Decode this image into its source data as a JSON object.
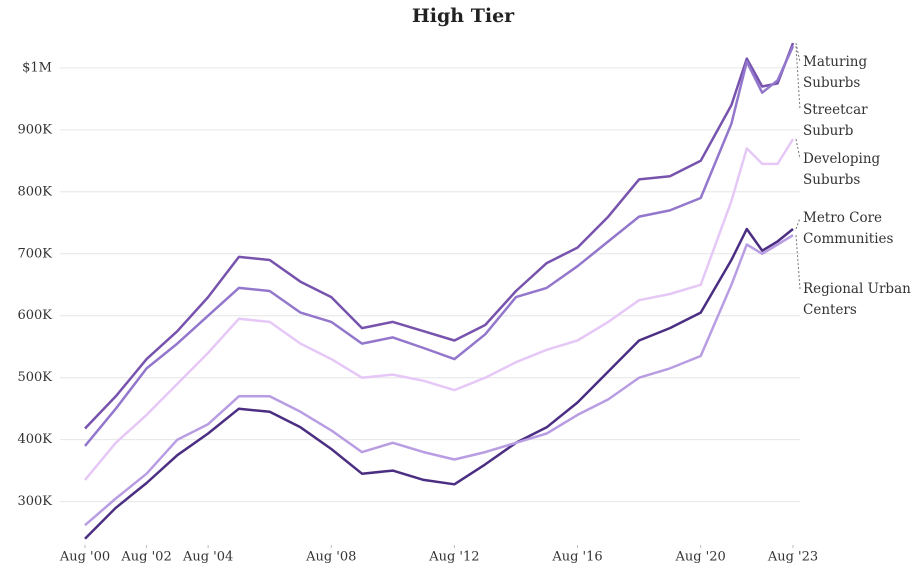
{
  "chart_data": {
    "type": "line",
    "title": "High Tier",
    "x": [
      "2000-08",
      "2001-08",
      "2002-08",
      "2003-08",
      "2004-08",
      "2005-08",
      "2006-08",
      "2007-08",
      "2008-08",
      "2009-08",
      "2010-08",
      "2011-08",
      "2012-08",
      "2013-08",
      "2014-08",
      "2015-08",
      "2016-08",
      "2017-08",
      "2018-08",
      "2019-08",
      "2020-08",
      "2021-08",
      "2022-02",
      "2022-08",
      "2023-02",
      "2023-08"
    ],
    "xlim": [
      "2000-08",
      "2023-08"
    ],
    "xticks": [
      {
        "value": "2000-08",
        "label": "Aug '00"
      },
      {
        "value": "2002-08",
        "label": "Aug '02"
      },
      {
        "value": "2004-08",
        "label": "Aug '04"
      },
      {
        "value": "2008-08",
        "label": "Aug '08"
      },
      {
        "value": "2012-08",
        "label": "Aug '12"
      },
      {
        "value": "2016-08",
        "label": "Aug '16"
      },
      {
        "value": "2020-08",
        "label": "Aug '20"
      },
      {
        "value": "2023-08",
        "label": "Aug '23"
      }
    ],
    "ylim": [
      230000,
      1045000
    ],
    "yticks": [
      {
        "value": 300000,
        "label": "300K"
      },
      {
        "value": 400000,
        "label": "400K"
      },
      {
        "value": 500000,
        "label": "500K"
      },
      {
        "value": 600000,
        "label": "600K"
      },
      {
        "value": 700000,
        "label": "700K"
      },
      {
        "value": 800000,
        "label": "800K"
      },
      {
        "value": 900000,
        "label": "900K"
      },
      {
        "value": 1000000,
        "label": "$1M"
      }
    ],
    "grid": true,
    "series": [
      {
        "name": "Maturing Suburbs",
        "color": "#7753ad",
        "values": [
          418000,
          470000,
          530000,
          575000,
          630000,
          695000,
          690000,
          655000,
          630000,
          580000,
          590000,
          575000,
          560000,
          585000,
          640000,
          685000,
          710000,
          760000,
          820000,
          825000,
          850000,
          940000,
          1015000,
          970000,
          975000,
          1040000
        ]
      },
      {
        "name": "Streetcar Suburb",
        "color": "#9377cc",
        "values": [
          390000,
          450000,
          515000,
          555000,
          600000,
          645000,
          640000,
          605000,
          590000,
          555000,
          565000,
          548000,
          530000,
          570000,
          630000,
          645000,
          680000,
          720000,
          760000,
          770000,
          790000,
          910000,
          1010000,
          960000,
          980000,
          1035000
        ]
      },
      {
        "name": "Developing Suburbs",
        "color": "#e6c8f7",
        "values": [
          335000,
          395000,
          440000,
          490000,
          540000,
          595000,
          590000,
          555000,
          530000,
          500000,
          505000,
          495000,
          480000,
          500000,
          525000,
          545000,
          560000,
          590000,
          625000,
          635000,
          650000,
          785000,
          870000,
          845000,
          845000,
          885000
        ]
      },
      {
        "name": "Metro Core Communities",
        "color": "#4b2e82",
        "values": [
          240000,
          290000,
          330000,
          375000,
          410000,
          450000,
          445000,
          420000,
          385000,
          345000,
          350000,
          335000,
          328000,
          360000,
          395000,
          420000,
          460000,
          510000,
          560000,
          580000,
          605000,
          690000,
          740000,
          705000,
          720000,
          740000
        ]
      },
      {
        "name": "Regional Urban Centers",
        "color": "#b99de3",
        "values": [
          262000,
          305000,
          345000,
          400000,
          425000,
          470000,
          470000,
          445000,
          415000,
          380000,
          395000,
          380000,
          368000,
          380000,
          395000,
          410000,
          440000,
          465000,
          500000,
          515000,
          535000,
          650000,
          715000,
          700000,
          715000,
          730000
        ]
      }
    ]
  }
}
